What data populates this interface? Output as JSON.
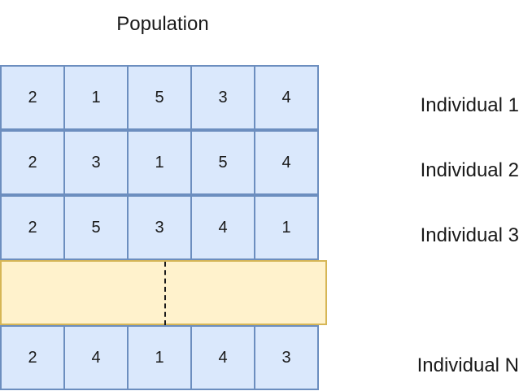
{
  "title": "Population",
  "individuals": [
    {
      "label": "Individual 1",
      "genes": [
        "2",
        "1",
        "5",
        "3",
        "4"
      ]
    },
    {
      "label": "Individual 2",
      "genes": [
        "2",
        "3",
        "1",
        "5",
        "4"
      ]
    },
    {
      "label": "Individual 3",
      "genes": [
        "2",
        "5",
        "3",
        "4",
        "1"
      ]
    },
    {
      "label": "Individual N",
      "genes": [
        "2",
        "4",
        "1",
        "4",
        "3"
      ]
    }
  ],
  "colors": {
    "cell_fill": "#dae8fc",
    "cell_border": "#6c8ebf",
    "gap_fill": "#fff2cc",
    "gap_border": "#d6b656"
  }
}
